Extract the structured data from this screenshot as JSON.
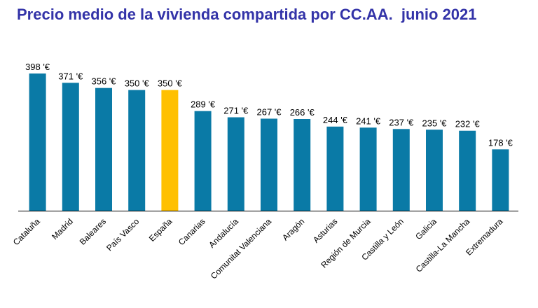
{
  "chart_data": {
    "type": "bar",
    "title": "Precio medio de la vivienda compartida por CC.AA.  junio 2021",
    "xlabel": "",
    "ylabel": "",
    "ylim": [
      0,
      400
    ],
    "grid": false,
    "categories": [
      "Cataluña",
      "Madrid",
      "Baleares",
      "País Vasco",
      "España",
      "Canarias",
      "Andalucía",
      "Comunitat Valenciana",
      "Aragón",
      "Asturias",
      "Región de Murcia",
      "Castilla y León",
      "Galicia",
      "Castilla-La Mancha",
      "Extremadura"
    ],
    "values": [
      398,
      371,
      356,
      350,
      350,
      289,
      271,
      267,
      266,
      244,
      241,
      237,
      235,
      232,
      178
    ],
    "data_labels": [
      "398 '€",
      "371 '€",
      "356 '€",
      "350 '€",
      "350 '€",
      "289 '€",
      "271 '€",
      "267 '€",
      "266 '€",
      "244 '€",
      "241 '€",
      "237 '€",
      "235 '€",
      "232 '€",
      "178 '€"
    ],
    "highlight_category": "España",
    "colors": {
      "bar": "#0a7aa6",
      "highlight": "#ffc000",
      "title": "#3333a8",
      "axis": "#000000"
    }
  }
}
